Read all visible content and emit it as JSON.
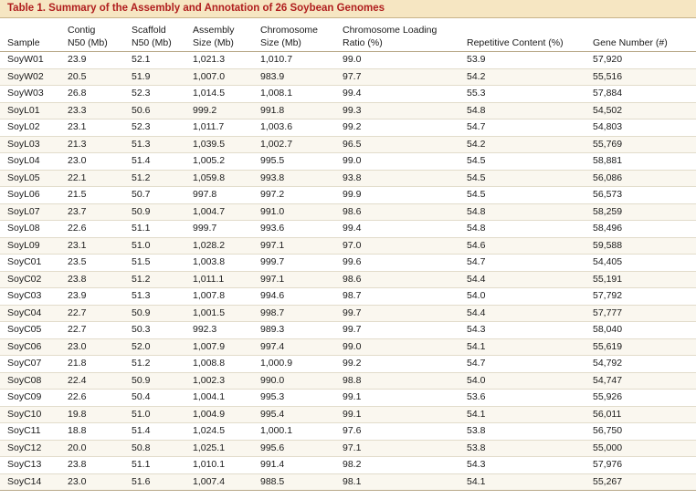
{
  "caption": "Table 1. Summary of the Assembly and Annotation of 26 Soybean Genomes",
  "headers": [
    {
      "l1": "",
      "l2": "Sample"
    },
    {
      "l1": "Contig",
      "l2": "N50 (Mb)"
    },
    {
      "l1": "Scaffold",
      "l2": "N50 (Mb)"
    },
    {
      "l1": "Assembly",
      "l2": "Size (Mb)"
    },
    {
      "l1": "Chromosome",
      "l2": "Size (Mb)"
    },
    {
      "l1": "Chromosome Loading",
      "l2": "Ratio (%)"
    },
    {
      "l1": "",
      "l2": "Repetitive Content (%)"
    },
    {
      "l1": "",
      "l2": "Gene Number (#)"
    }
  ],
  "rows": [
    [
      "SoyW01",
      "23.9",
      "52.1",
      "1,021.3",
      "1,010.7",
      "99.0",
      "53.9",
      "57,920"
    ],
    [
      "SoyW02",
      "20.5",
      "51.9",
      "1,007.0",
      "983.9",
      "97.7",
      "54.2",
      "55,516"
    ],
    [
      "SoyW03",
      "26.8",
      "52.3",
      "1,014.5",
      "1,008.1",
      "99.4",
      "55.3",
      "57,884"
    ],
    [
      "SoyL01",
      "23.3",
      "50.6",
      "999.2",
      "991.8",
      "99.3",
      "54.8",
      "54,502"
    ],
    [
      "SoyL02",
      "23.1",
      "52.3",
      "1,011.7",
      "1,003.6",
      "99.2",
      "54.7",
      "54,803"
    ],
    [
      "SoyL03",
      "21.3",
      "51.3",
      "1,039.5",
      "1,002.7",
      "96.5",
      "54.2",
      "55,769"
    ],
    [
      "SoyL04",
      "23.0",
      "51.4",
      "1,005.2",
      "995.5",
      "99.0",
      "54.5",
      "58,881"
    ],
    [
      "SoyL05",
      "22.1",
      "51.2",
      "1,059.8",
      "993.8",
      "93.8",
      "54.5",
      "56,086"
    ],
    [
      "SoyL06",
      "21.5",
      "50.7",
      "997.8",
      "997.2",
      "99.9",
      "54.5",
      "56,573"
    ],
    [
      "SoyL07",
      "23.7",
      "50.9",
      "1,004.7",
      "991.0",
      "98.6",
      "54.8",
      "58,259"
    ],
    [
      "SoyL08",
      "22.6",
      "51.1",
      "999.7",
      "993.6",
      "99.4",
      "54.8",
      "58,496"
    ],
    [
      "SoyL09",
      "23.1",
      "51.0",
      "1,028.2",
      "997.1",
      "97.0",
      "54.6",
      "59,588"
    ],
    [
      "SoyC01",
      "23.5",
      "51.5",
      "1,003.8",
      "999.7",
      "99.6",
      "54.7",
      "54,405"
    ],
    [
      "SoyC02",
      "23.8",
      "51.2",
      "1,011.1",
      "997.1",
      "98.6",
      "54.4",
      "55,191"
    ],
    [
      "SoyC03",
      "23.9",
      "51.3",
      "1,007.8",
      "994.6",
      "98.7",
      "54.0",
      "57,792"
    ],
    [
      "SoyC04",
      "22.7",
      "50.9",
      "1,001.5",
      "998.7",
      "99.7",
      "54.4",
      "57,777"
    ],
    [
      "SoyC05",
      "22.7",
      "50.3",
      "992.3",
      "989.3",
      "99.7",
      "54.3",
      "58,040"
    ],
    [
      "SoyC06",
      "23.0",
      "52.0",
      "1,007.9",
      "997.4",
      "99.0",
      "54.1",
      "55,619"
    ],
    [
      "SoyC07",
      "21.8",
      "51.2",
      "1,008.8",
      "1,000.9",
      "99.2",
      "54.7",
      "54,792"
    ],
    [
      "SoyC08",
      "22.4",
      "50.9",
      "1,002.3",
      "990.0",
      "98.8",
      "54.0",
      "54,747"
    ],
    [
      "SoyC09",
      "22.6",
      "50.4",
      "1,004.1",
      "995.3",
      "99.1",
      "53.6",
      "55,926"
    ],
    [
      "SoyC10",
      "19.8",
      "51.0",
      "1,004.9",
      "995.4",
      "99.1",
      "54.1",
      "56,011"
    ],
    [
      "SoyC11",
      "18.8",
      "51.4",
      "1,024.5",
      "1,000.1",
      "97.6",
      "53.8",
      "56,750"
    ],
    [
      "SoyC12",
      "20.0",
      "50.8",
      "1,025.1",
      "995.6",
      "97.1",
      "53.8",
      "55,000"
    ],
    [
      "SoyC13",
      "23.8",
      "51.1",
      "1,010.1",
      "991.4",
      "98.2",
      "54.3",
      "57,976"
    ],
    [
      "SoyC14",
      "23.0",
      "51.6",
      "1,007.4",
      "988.5",
      "98.1",
      "54.1",
      "55,267"
    ]
  ]
}
